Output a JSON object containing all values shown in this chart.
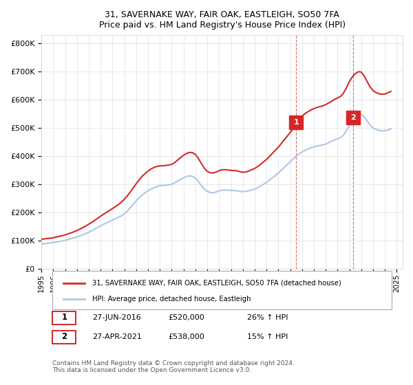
{
  "title": "31, SAVERNAKE WAY, FAIR OAK, EASTLEIGH, SO50 7FA",
  "subtitle": "Price paid vs. HM Land Registry's House Price Index (HPI)",
  "ylabel": "",
  "xlim_start": 1995.0,
  "xlim_end": 2025.5,
  "ylim_min": 0,
  "ylim_max": 830000,
  "yticks": [
    0,
    100000,
    200000,
    300000,
    400000,
    500000,
    600000,
    700000,
    800000
  ],
  "ytick_labels": [
    "£0",
    "£100K",
    "£200K",
    "£300K",
    "£400K",
    "£500K",
    "£600K",
    "£700K",
    "£800K"
  ],
  "xticks": [
    1995,
    1996,
    1997,
    1998,
    1999,
    2000,
    2001,
    2002,
    2003,
    2004,
    2005,
    2006,
    2007,
    2008,
    2009,
    2010,
    2011,
    2012,
    2013,
    2014,
    2015,
    2016,
    2017,
    2018,
    2019,
    2020,
    2021,
    2022,
    2023,
    2024,
    2025
  ],
  "hpi_color": "#aec6e8",
  "price_color": "#d62728",
  "marker1_x": 2016.5,
  "marker1_y": 520000,
  "marker2_x": 2021.33,
  "marker2_y": 538000,
  "marker1_label": "1",
  "marker2_label": "2",
  "dashed_vline1_x": 2016.5,
  "dashed_vline2_x": 2021.33,
  "legend_line1": "31, SAVERNAKE WAY, FAIR OAK, EASTLEIGH, SO50 7FA (detached house)",
  "legend_line2": "HPI: Average price, detached house, Eastleigh",
  "table_row1": [
    "1",
    "27-JUN-2016",
    "£520,000",
    "26% ↑ HPI"
  ],
  "table_row2": [
    "2",
    "27-APR-2021",
    "£538,000",
    "15% ↑ HPI"
  ],
  "footnote": "Contains HM Land Registry data © Crown copyright and database right 2024.\nThis data is licensed under the Open Government Licence v3.0.",
  "hpi_x": [
    1995.0,
    1995.25,
    1995.5,
    1995.75,
    1996.0,
    1996.25,
    1996.5,
    1996.75,
    1997.0,
    1997.25,
    1997.5,
    1997.75,
    1998.0,
    1998.25,
    1998.5,
    1998.75,
    1999.0,
    1999.25,
    1999.5,
    1999.75,
    2000.0,
    2000.25,
    2000.5,
    2000.75,
    2001.0,
    2001.25,
    2001.5,
    2001.75,
    2002.0,
    2002.25,
    2002.5,
    2002.75,
    2003.0,
    2003.25,
    2003.5,
    2003.75,
    2004.0,
    2004.25,
    2004.5,
    2004.75,
    2005.0,
    2005.25,
    2005.5,
    2005.75,
    2006.0,
    2006.25,
    2006.5,
    2006.75,
    2007.0,
    2007.25,
    2007.5,
    2007.75,
    2008.0,
    2008.25,
    2008.5,
    2008.75,
    2009.0,
    2009.25,
    2009.5,
    2009.75,
    2010.0,
    2010.25,
    2010.5,
    2010.75,
    2011.0,
    2011.25,
    2011.5,
    2011.75,
    2012.0,
    2012.25,
    2012.5,
    2012.75,
    2013.0,
    2013.25,
    2013.5,
    2013.75,
    2014.0,
    2014.25,
    2014.5,
    2014.75,
    2015.0,
    2015.25,
    2015.5,
    2015.75,
    2016.0,
    2016.25,
    2016.5,
    2016.75,
    2017.0,
    2017.25,
    2017.5,
    2017.75,
    2018.0,
    2018.25,
    2018.5,
    2018.75,
    2019.0,
    2019.25,
    2019.5,
    2019.75,
    2020.0,
    2020.25,
    2020.5,
    2020.75,
    2021.0,
    2021.25,
    2021.5,
    2021.75,
    2022.0,
    2022.25,
    2022.5,
    2022.75,
    2023.0,
    2023.25,
    2023.5,
    2023.75,
    2024.0,
    2024.25,
    2024.5
  ],
  "hpi_y": [
    88000,
    89000,
    90500,
    91500,
    93000,
    95000,
    97000,
    99000,
    101000,
    104000,
    107000,
    110000,
    113000,
    117000,
    121000,
    125000,
    130000,
    135000,
    141000,
    147000,
    153000,
    158000,
    163000,
    168000,
    173000,
    178000,
    183000,
    188000,
    195000,
    205000,
    217000,
    229000,
    241000,
    253000,
    262000,
    270000,
    277000,
    283000,
    288000,
    292000,
    295000,
    296000,
    297000,
    298000,
    300000,
    305000,
    312000,
    318000,
    323000,
    328000,
    330000,
    328000,
    322000,
    310000,
    295000,
    283000,
    275000,
    271000,
    270000,
    273000,
    277000,
    279000,
    280000,
    279000,
    278000,
    278000,
    277000,
    275000,
    274000,
    275000,
    277000,
    280000,
    283000,
    288000,
    294000,
    300000,
    307000,
    315000,
    323000,
    331000,
    340000,
    350000,
    360000,
    370000,
    380000,
    390000,
    400000,
    408000,
    415000,
    420000,
    425000,
    430000,
    433000,
    436000,
    438000,
    440000,
    443000,
    448000,
    453000,
    458000,
    462000,
    466000,
    475000,
    490000,
    508000,
    523000,
    535000,
    545000,
    548000,
    540000,
    525000,
    510000,
    500000,
    495000,
    492000,
    490000,
    490000,
    493000,
    497000
  ],
  "price_x": [
    1995.0,
    1995.25,
    1995.5,
    1995.75,
    1996.0,
    1996.25,
    1996.5,
    1996.75,
    1997.0,
    1997.25,
    1997.5,
    1997.75,
    1998.0,
    1998.25,
    1998.5,
    1998.75,
    1999.0,
    1999.25,
    1999.5,
    1999.75,
    2000.0,
    2000.25,
    2000.5,
    2000.75,
    2001.0,
    2001.25,
    2001.5,
    2001.75,
    2002.0,
    2002.25,
    2002.5,
    2002.75,
    2003.0,
    2003.25,
    2003.5,
    2003.75,
    2004.0,
    2004.25,
    2004.5,
    2004.75,
    2005.0,
    2005.25,
    2005.5,
    2005.75,
    2006.0,
    2006.25,
    2006.5,
    2006.75,
    2007.0,
    2007.25,
    2007.5,
    2007.75,
    2008.0,
    2008.25,
    2008.5,
    2008.75,
    2009.0,
    2009.25,
    2009.5,
    2009.75,
    2010.0,
    2010.25,
    2010.5,
    2010.75,
    2011.0,
    2011.25,
    2011.5,
    2011.75,
    2012.0,
    2012.25,
    2012.5,
    2012.75,
    2013.0,
    2013.25,
    2013.5,
    2013.75,
    2014.0,
    2014.25,
    2014.5,
    2014.75,
    2015.0,
    2015.25,
    2015.5,
    2015.75,
    2016.0,
    2016.25,
    2016.5,
    2016.75,
    2017.0,
    2017.25,
    2017.5,
    2017.75,
    2018.0,
    2018.25,
    2018.5,
    2018.75,
    2019.0,
    2019.25,
    2019.5,
    2019.75,
    2020.0,
    2020.25,
    2020.5,
    2020.75,
    2021.0,
    2021.25,
    2021.5,
    2021.75,
    2022.0,
    2022.25,
    2022.5,
    2022.75,
    2023.0,
    2023.25,
    2023.5,
    2023.75,
    2024.0,
    2024.25,
    2024.5
  ],
  "price_y": [
    105000,
    106000,
    107500,
    108500,
    110000,
    112500,
    115000,
    117500,
    120500,
    124000,
    127500,
    131500,
    136000,
    141000,
    146500,
    152000,
    158500,
    165000,
    172000,
    179500,
    187000,
    194000,
    200500,
    207000,
    214000,
    221000,
    228500,
    237000,
    247000,
    259000,
    273000,
    287500,
    302000,
    316000,
    328500,
    338500,
    347000,
    354500,
    360000,
    363500,
    365500,
    366000,
    367000,
    368500,
    371000,
    377000,
    386000,
    395000,
    403000,
    410000,
    413500,
    412500,
    406000,
    392000,
    374000,
    357000,
    346000,
    341500,
    340000,
    343500,
    348500,
    351500,
    352000,
    351000,
    349500,
    349000,
    348000,
    345000,
    343000,
    344000,
    347000,
    352000,
    356500,
    363000,
    371000,
    379500,
    388500,
    399000,
    410000,
    421000,
    432000,
    445000,
    458000,
    471000,
    484000,
    497000,
    520000,
    531000,
    542000,
    551000,
    558000,
    564000,
    569000,
    573000,
    576000,
    579000,
    583000,
    589000,
    595000,
    602000,
    607000,
    612000,
    624000,
    643000,
    665000,
    682000,
    693000,
    700000,
    699000,
    685000,
    665000,
    646000,
    633000,
    626000,
    622000,
    620000,
    621000,
    625000,
    630000
  ]
}
